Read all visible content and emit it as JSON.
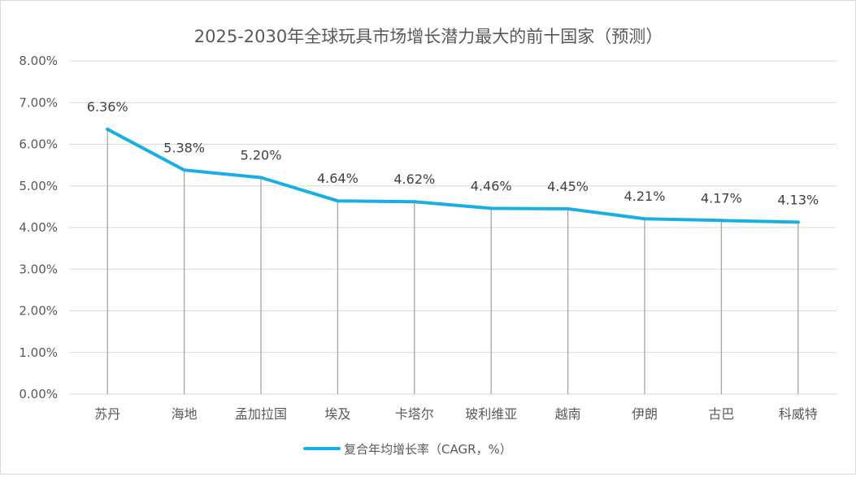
{
  "chart_data": {
    "type": "line",
    "title": "2025-2030年全球玩具市场增长潜力最大的前十国家（预测）",
    "categories": [
      "苏丹",
      "海地",
      "孟加拉国",
      "埃及",
      "卡塔尔",
      "玻利维亚",
      "越南",
      "伊朗",
      "古巴",
      "科威特"
    ],
    "series": [
      {
        "name": "复合年均增长率（CAGR，%）",
        "values": [
          6.36,
          5.38,
          5.2,
          4.64,
          4.62,
          4.46,
          4.45,
          4.21,
          4.17,
          4.13
        ],
        "data_labels": [
          "6.36%",
          "5.38%",
          "5.20%",
          "4.64%",
          "4.62%",
          "4.46%",
          "4.45%",
          "4.21%",
          "4.17%",
          "4.13%"
        ],
        "color": "#1aaee6"
      }
    ],
    "ylim": [
      0,
      8
    ],
    "yticks": [
      0,
      1,
      2,
      3,
      4,
      5,
      6,
      7,
      8
    ],
    "ytick_labels": [
      "0.00%",
      "1.00%",
      "2.00%",
      "3.00%",
      "4.00%",
      "5.00%",
      "6.00%",
      "7.00%",
      "8.00%"
    ],
    "xlabel": "",
    "ylabel": "",
    "grid": true,
    "drop_lines": true,
    "legend_position": "bottom",
    "colors": {
      "gridline": "#d9d9d9",
      "dropline": "#a6a6a6",
      "text": "#595959"
    }
  }
}
